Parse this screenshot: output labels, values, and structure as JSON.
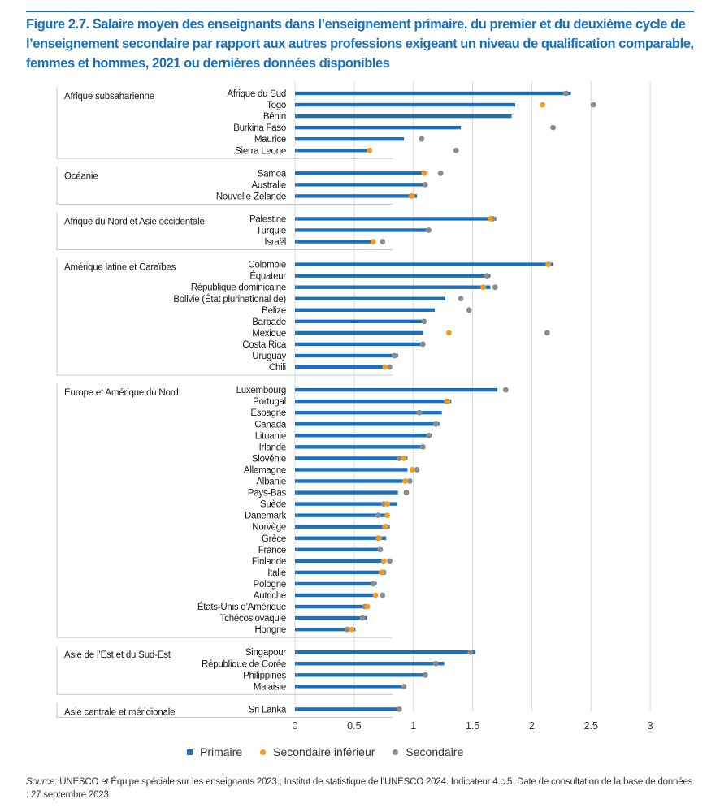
{
  "figure": {
    "title": "Figure 2.7. Salaire moyen des enseignants dans l’enseignement primaire, du premier et du deuxième cycle de l’enseignement secondaire par rapport aux autres professions exigeant un niveau de qualification comparable, femmes et hommes, 2021 ou dernières données disponibles",
    "source_label": "Source",
    "source_text": ": UNESCO et Équipe spéciale sur les enseignants 2023 ; Institut de statistique de l’UNESCO 2024. Indicateur 4.c.5. Date de consultation de la base de données : 27 septembre 2023."
  },
  "colors": {
    "primaire": "#1a6fc0",
    "secondaire_inferieur": "#f39c1f",
    "secondaire": "#8c8c8c",
    "title": "#1a6fc0",
    "grid": "#d9d9d9"
  },
  "chart_data": {
    "type": "bar",
    "orientation": "horizontal",
    "xlim": [
      0,
      3
    ],
    "x_ticks": [
      "0",
      "0.5",
      "1",
      "1.5",
      "2",
      "2.5",
      "3"
    ],
    "grid": true,
    "legend_position": "bottom",
    "series": [
      {
        "name": "Primaire",
        "marker": "bar"
      },
      {
        "name": "Secondaire inférieur",
        "marker": "dot"
      },
      {
        "name": "Secondaire",
        "marker": "dot"
      }
    ],
    "groups": [
      {
        "name": "Afrique subsaharienne",
        "countries": [
          {
            "name": "Afrique du Sud",
            "primaire": 2.33,
            "sec_inf": null,
            "sec": 2.29
          },
          {
            "name": "Togo",
            "primaire": 1.86,
            "sec_inf": 2.09,
            "sec": 2.52
          },
          {
            "name": "Bénin",
            "primaire": 1.83,
            "sec_inf": null,
            "sec": null
          },
          {
            "name": "Burkina Faso",
            "primaire": 1.4,
            "sec_inf": null,
            "sec": 2.18
          },
          {
            "name": "Maurice",
            "primaire": 0.92,
            "sec_inf": null,
            "sec": 1.07
          },
          {
            "name": "Sierra Leone",
            "primaire": 0.61,
            "sec_inf": 0.63,
            "sec": 1.36
          }
        ]
      },
      {
        "name": "Océanie",
        "countries": [
          {
            "name": "Samoa",
            "primaire": 1.12,
            "sec_inf": 1.09,
            "sec": 1.23
          },
          {
            "name": "Australie",
            "primaire": 1.11,
            "sec_inf": null,
            "sec": 1.1
          },
          {
            "name": "Nouvelle-Zélande",
            "primaire": 1.03,
            "sec_inf": 0.99,
            "sec": 0.98
          }
        ]
      },
      {
        "name": "Afrique du Nord et Asie occidentale",
        "countries": [
          {
            "name": "Palestine",
            "primaire": 1.7,
            "sec_inf": 1.65,
            "sec": 1.67
          },
          {
            "name": "Turquie",
            "primaire": 1.12,
            "sec_inf": null,
            "sec": 1.13
          },
          {
            "name": "Israël",
            "primaire": 0.64,
            "sec_inf": 0.66,
            "sec": 0.74
          }
        ]
      },
      {
        "name": "Amérique latine et Caraïbes",
        "countries": [
          {
            "name": "Colombie",
            "primaire": 2.18,
            "sec_inf": 2.14,
            "sec": 2.14
          },
          {
            "name": "Équateur",
            "primaire": 1.65,
            "sec_inf": null,
            "sec": 1.62
          },
          {
            "name": "République dominicaine",
            "primaire": 1.65,
            "sec_inf": 1.59,
            "sec": 1.69
          },
          {
            "name": "Bolivie (État plurinational de)",
            "primaire": 1.27,
            "sec_inf": null,
            "sec": 1.4
          },
          {
            "name": "Belize",
            "primaire": 1.18,
            "sec_inf": null,
            "sec": 1.47
          },
          {
            "name": "Barbade",
            "primaire": 1.1,
            "sec_inf": null,
            "sec": 1.09
          },
          {
            "name": "Mexique",
            "primaire": 1.08,
            "sec_inf": 1.3,
            "sec": 2.13
          },
          {
            "name": "Costa Rica",
            "primaire": 1.06,
            "sec_inf": null,
            "sec": 1.08
          },
          {
            "name": "Uruguay",
            "primaire": 0.87,
            "sec_inf": null,
            "sec": 0.84
          },
          {
            "name": "Chili",
            "primaire": 0.8,
            "sec_inf": 0.76,
            "sec": 0.8
          }
        ]
      },
      {
        "name": "Europe et Amérique du Nord",
        "countries": [
          {
            "name": "Luxembourg",
            "primaire": 1.71,
            "sec_inf": null,
            "sec": 1.78
          },
          {
            "name": "Portugal",
            "primaire": 1.32,
            "sec_inf": 1.29,
            "sec": 1.28
          },
          {
            "name": "Espagne",
            "primaire": 1.24,
            "sec_inf": null,
            "sec": 1.05
          },
          {
            "name": "Canada",
            "primaire": 1.22,
            "sec_inf": null,
            "sec": 1.19
          },
          {
            "name": "Lituanie",
            "primaire": 1.16,
            "sec_inf": null,
            "sec": 1.13
          },
          {
            "name": "Irlande",
            "primaire": 1.1,
            "sec_inf": null,
            "sec": 1.08
          },
          {
            "name": "Slovénie",
            "primaire": 0.95,
            "sec_inf": 0.92,
            "sec": 0.88
          },
          {
            "name": "Allemagne",
            "primaire": 0.95,
            "sec_inf": 0.99,
            "sec": 1.03
          },
          {
            "name": "Albanie",
            "primaire": 0.91,
            "sec_inf": 0.93,
            "sec": 0.97
          },
          {
            "name": "Pays-Bas",
            "primaire": 0.87,
            "sec_inf": null,
            "sec": 0.94
          },
          {
            "name": "Suède",
            "primaire": 0.86,
            "sec_inf": 0.78,
            "sec": 0.75
          },
          {
            "name": "Danemark",
            "primaire": 0.79,
            "sec_inf": 0.78,
            "sec": 0.7
          },
          {
            "name": "Norvège",
            "primaire": 0.8,
            "sec_inf": 0.76,
            "sec": 0.77
          },
          {
            "name": "Grèce",
            "primaire": 0.77,
            "sec_inf": 0.71,
            "sec": 0.7
          },
          {
            "name": "France",
            "primaire": 0.71,
            "sec_inf": null,
            "sec": 0.72
          },
          {
            "name": "Finlande",
            "primaire": 0.74,
            "sec_inf": 0.75,
            "sec": 0.8
          },
          {
            "name": "Italie",
            "primaire": 0.72,
            "sec_inf": 0.73,
            "sec": 0.75
          },
          {
            "name": "Pologne",
            "primaire": 0.69,
            "sec_inf": null,
            "sec": 0.66
          },
          {
            "name": "Autriche",
            "primaire": 0.69,
            "sec_inf": 0.68,
            "sec": 0.74
          },
          {
            "name": "États-Unis d’Amérique",
            "primaire": 0.63,
            "sec_inf": 0.61,
            "sec": 0.59
          },
          {
            "name": "Tchécoslovaquie",
            "primaire": 0.61,
            "sec_inf": null,
            "sec": 0.57
          },
          {
            "name": "Hongrie",
            "primaire": 0.51,
            "sec_inf": 0.48,
            "sec": 0.44
          }
        ]
      },
      {
        "name": "Asie de l’Est et du Sud-Est",
        "countries": [
          {
            "name": "Singapour",
            "primaire": 1.52,
            "sec_inf": null,
            "sec": 1.48
          },
          {
            "name": "République de Corée",
            "primaire": 1.26,
            "sec_inf": null,
            "sec": 1.19
          },
          {
            "name": "Philippines",
            "primaire": 1.12,
            "sec_inf": null,
            "sec": 1.1
          },
          {
            "name": "Malaisie",
            "primaire": 0.94,
            "sec_inf": null,
            "sec": 0.92
          }
        ]
      },
      {
        "name": "Asie centrale et méridionale",
        "countries": [
          {
            "name": "Sri Lanka",
            "primaire": 0.9,
            "sec_inf": null,
            "sec": 0.88
          }
        ]
      }
    ]
  }
}
